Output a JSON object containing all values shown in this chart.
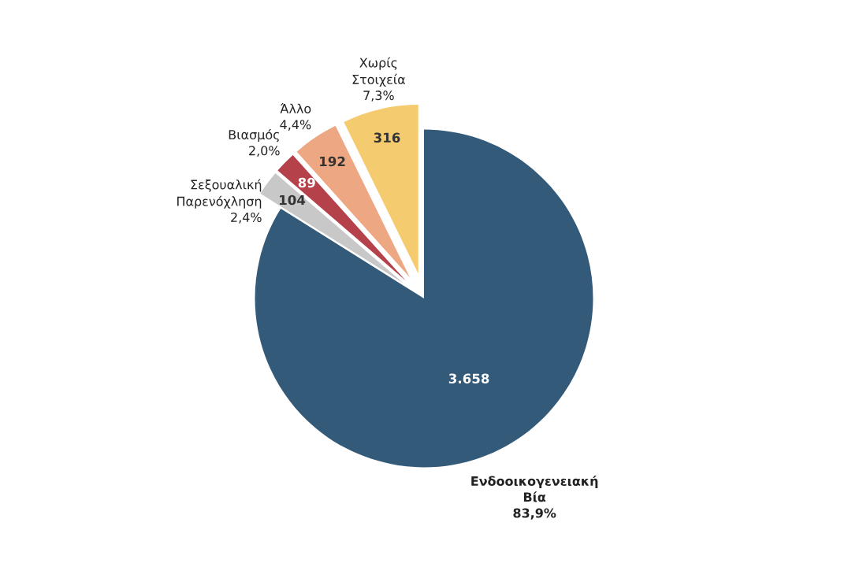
{
  "chart_data": {
    "type": "pie",
    "categories": [
      "Ενδοοικογενειακή\nΒία\n83,9%",
      "Σεξουαλική\nΠαρενόχληση\n2,4%",
      "Βιασμός\n2,0%",
      "Άλλο\n4,4%",
      "Χωρίς\nΣτοιχεία\n7,3%"
    ],
    "values": [
      3658,
      104,
      89,
      192,
      316
    ],
    "value_labels": [
      "3.658",
      "104",
      "89",
      "192",
      "316"
    ],
    "colors": [
      "#345a7a",
      "#c8c8c8",
      "#b5414b",
      "#eea783",
      "#f5cb70"
    ]
  }
}
